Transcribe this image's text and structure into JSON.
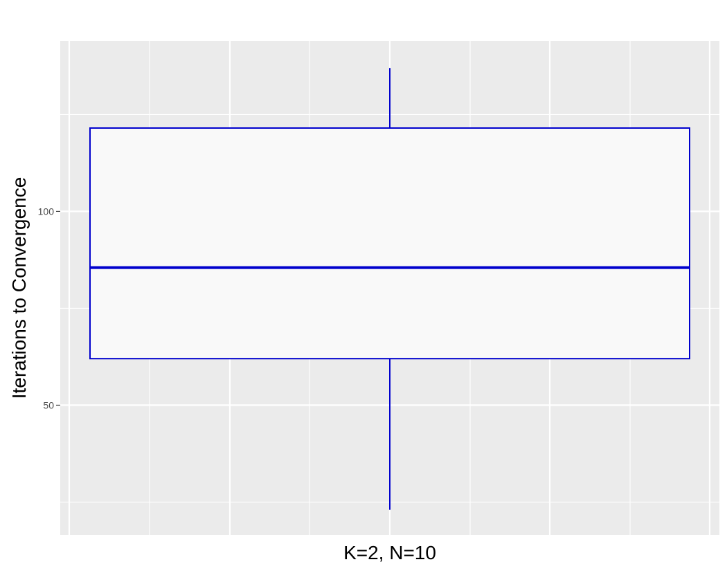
{
  "chart_data": {
    "type": "boxplot",
    "title": "",
    "xlabel": "K=2, N=10",
    "ylabel": "Iterations to Convergence",
    "ylim": [
      16.5,
      144
    ],
    "yticks": [
      50,
      100
    ],
    "grid": true,
    "legend": "none",
    "colors": {
      "panel": "#ebebeb",
      "grid": "#ffffff",
      "box_fill": "#f9f9f9",
      "box_stroke": "#0000cd"
    },
    "boxes": [
      {
        "category": "K=2, N=10",
        "min": 23,
        "q1": 62,
        "median": 85.5,
        "q3": 121.5,
        "max": 137
      }
    ]
  }
}
